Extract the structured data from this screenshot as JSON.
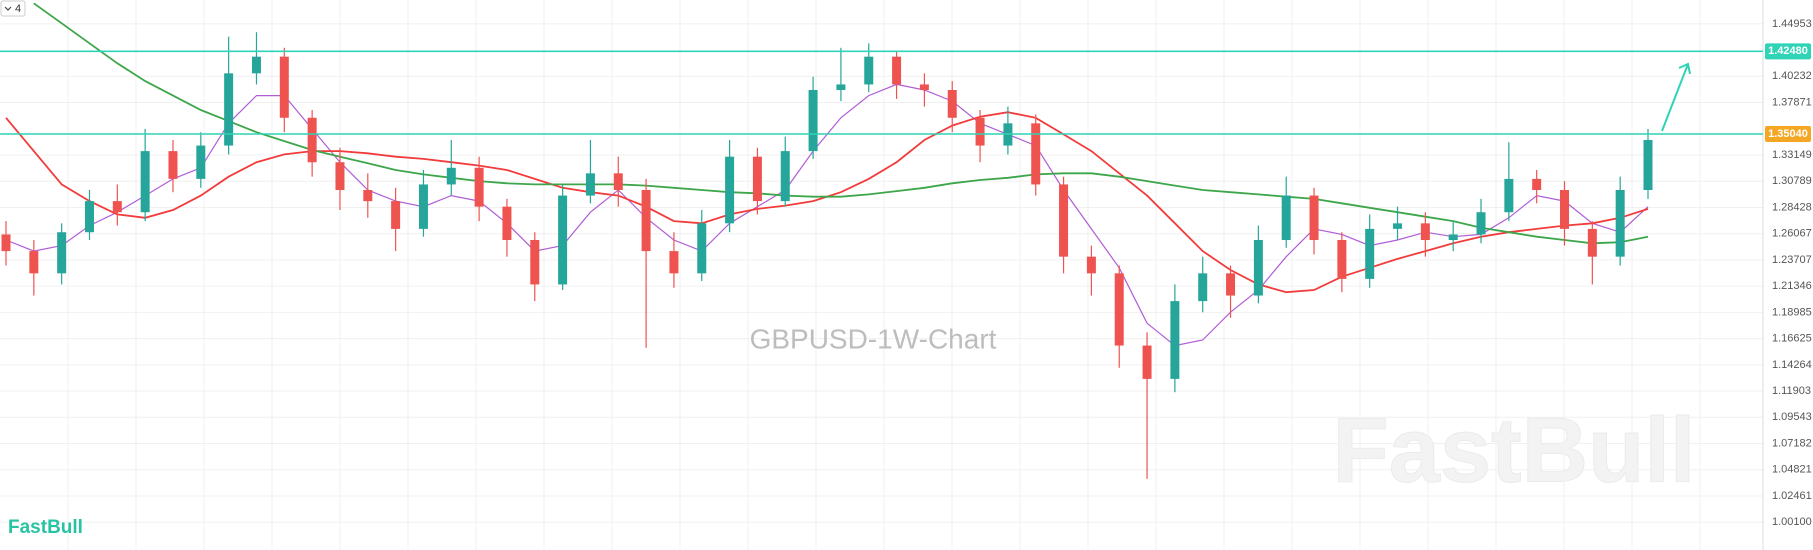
{
  "chart_data": {
    "type": "candlestick",
    "title": "GBPUSD-1W-Chart",
    "brand": "FastBull",
    "badge": "4",
    "ylim": [
      0.976,
      1.471
    ],
    "yticks": [
      1.44953,
      1.40232,
      1.37871,
      1.33149,
      1.30789,
      1.28428,
      1.26067,
      1.23707,
      1.21346,
      1.18985,
      1.16625,
      1.14264,
      1.11903,
      1.09543,
      1.07182,
      1.04821,
      1.02461,
      {
        "value": 1.001,
        "label": "1.00100"
      }
    ],
    "grid": true,
    "up_color": "#26a69a",
    "down_color": "#ef5350",
    "open": [
      1.26,
      1.245,
      1.225,
      1.262,
      1.29,
      1.28,
      1.335,
      1.31,
      1.34,
      1.405,
      1.42,
      1.365,
      1.325,
      1.3,
      1.29,
      1.265,
      1.305,
      1.32,
      1.285,
      1.255,
      1.215,
      1.295,
      1.315,
      1.3,
      1.245,
      1.225,
      1.27,
      1.33,
      1.29,
      1.335,
      1.39,
      1.395,
      1.42,
      1.395,
      1.39,
      1.365,
      1.34,
      1.36,
      1.305,
      1.24,
      1.225,
      1.16,
      1.13,
      1.2,
      1.225,
      1.205,
      1.255,
      1.295,
      1.255,
      1.22,
      1.265,
      1.27,
      1.255,
      1.26,
      1.28,
      1.31,
      1.3,
      1.265,
      1.24,
      1.3
    ],
    "high": [
      1.272,
      1.255,
      1.27,
      1.3,
      1.305,
      1.355,
      1.345,
      1.352,
      1.438,
      1.442,
      1.428,
      1.372,
      1.338,
      1.315,
      1.302,
      1.318,
      1.345,
      1.33,
      1.292,
      1.262,
      1.305,
      1.345,
      1.33,
      1.31,
      1.262,
      1.282,
      1.345,
      1.338,
      1.348,
      1.402,
      1.428,
      1.432,
      1.425,
      1.405,
      1.398,
      1.372,
      1.375,
      1.368,
      1.312,
      1.25,
      1.232,
      1.172,
      1.215,
      1.24,
      1.232,
      1.268,
      1.312,
      1.302,
      1.262,
      1.278,
      1.285,
      1.28,
      1.272,
      1.292,
      1.343,
      1.318,
      1.308,
      1.272,
      1.312,
      1.355
    ],
    "low": [
      1.232,
      1.205,
      1.215,
      1.255,
      1.268,
      1.272,
      1.298,
      1.302,
      1.332,
      1.395,
      1.352,
      1.312,
      1.282,
      1.275,
      1.245,
      1.258,
      1.295,
      1.272,
      1.24,
      1.2,
      1.21,
      1.288,
      1.285,
      1.158,
      1.212,
      1.218,
      1.262,
      1.278,
      1.285,
      1.328,
      1.38,
      1.388,
      1.382,
      1.375,
      1.352,
      1.325,
      1.332,
      1.295,
      1.225,
      1.205,
      1.14,
      1.04,
      1.118,
      1.19,
      1.185,
      1.198,
      1.248,
      1.242,
      1.208,
      1.212,
      1.255,
      1.24,
      1.245,
      1.252,
      1.272,
      1.288,
      1.25,
      1.215,
      1.232,
      1.292
    ],
    "close": [
      1.245,
      1.225,
      1.262,
      1.29,
      1.28,
      1.335,
      1.31,
      1.34,
      1.405,
      1.42,
      1.365,
      1.325,
      1.3,
      1.29,
      1.265,
      1.305,
      1.32,
      1.285,
      1.255,
      1.215,
      1.295,
      1.315,
      1.3,
      1.245,
      1.225,
      1.27,
      1.33,
      1.29,
      1.335,
      1.39,
      1.395,
      1.42,
      1.395,
      1.39,
      1.365,
      1.34,
      1.36,
      1.305,
      1.24,
      1.225,
      1.16,
      1.13,
      1.2,
      1.225,
      1.205,
      1.255,
      1.295,
      1.255,
      1.22,
      1.265,
      1.27,
      1.255,
      1.26,
      1.28,
      1.31,
      1.3,
      1.265,
      1.24,
      1.3,
      1.345
    ],
    "lines": [
      {
        "color": "#b15dd6",
        "width": 1.2,
        "values": [
          1.255,
          1.245,
          1.25,
          1.268,
          1.28,
          1.295,
          1.31,
          1.32,
          1.36,
          1.385,
          1.385,
          1.355,
          1.325,
          1.3,
          1.29,
          1.285,
          1.295,
          1.29,
          1.27,
          1.245,
          1.25,
          1.28,
          1.3,
          1.275,
          1.255,
          1.245,
          1.27,
          1.285,
          1.3,
          1.335,
          1.365,
          1.385,
          1.395,
          1.39,
          1.38,
          1.36,
          1.35,
          1.34,
          1.3,
          1.265,
          1.23,
          1.18,
          1.16,
          1.165,
          1.19,
          1.21,
          1.24,
          1.265,
          1.26,
          1.25,
          1.255,
          1.262,
          1.258,
          1.26,
          1.275,
          1.295,
          1.29,
          1.27,
          1.262,
          1.285
        ]
      },
      {
        "color": "#f23b3b",
        "width": 1.8,
        "values": [
          1.365,
          1.335,
          1.305,
          1.29,
          1.278,
          1.275,
          1.282,
          1.295,
          1.312,
          1.325,
          1.332,
          1.335,
          1.335,
          1.333,
          1.33,
          1.328,
          1.325,
          1.322,
          1.318,
          1.31,
          1.302,
          1.298,
          1.295,
          1.285,
          1.272,
          1.27,
          1.278,
          1.283,
          1.286,
          1.29,
          1.298,
          1.31,
          1.325,
          1.345,
          1.358,
          1.366,
          1.37,
          1.365,
          1.35,
          1.335,
          1.315,
          1.295,
          1.27,
          1.245,
          1.228,
          1.215,
          1.208,
          1.21,
          1.222,
          1.23,
          1.238,
          1.245,
          1.252,
          1.258,
          1.262,
          1.265,
          1.268,
          1.27,
          1.275,
          1.283
        ]
      },
      {
        "color": "#3da64a",
        "width": 1.8,
        "values": [
          null,
          1.468,
          1.45,
          1.432,
          1.414,
          1.398,
          1.385,
          1.372,
          1.362,
          1.352,
          1.344,
          1.336,
          1.33,
          1.324,
          1.318,
          1.314,
          1.311,
          1.308,
          1.306,
          1.305,
          1.305,
          1.305,
          1.305,
          1.304,
          1.302,
          1.3,
          1.298,
          1.297,
          1.295,
          1.294,
          1.294,
          1.296,
          1.299,
          1.302,
          1.306,
          1.309,
          1.311,
          1.314,
          1.315,
          1.315,
          1.312,
          1.308,
          1.304,
          1.3,
          1.298,
          1.296,
          1.294,
          1.292,
          1.288,
          1.284,
          1.28,
          1.276,
          1.272,
          1.266,
          1.262,
          1.258,
          1.255,
          1.252,
          1.253,
          1.258
        ]
      }
    ],
    "levels": [
      {
        "value": 1.4248,
        "label": "1.42480",
        "color": "#2fd3b5",
        "label_color": "#2fd3b5"
      },
      {
        "value": 1.3504,
        "label": "1.35040",
        "color": "#2fd3b5",
        "label_color": "#f5a623"
      }
    ]
  }
}
